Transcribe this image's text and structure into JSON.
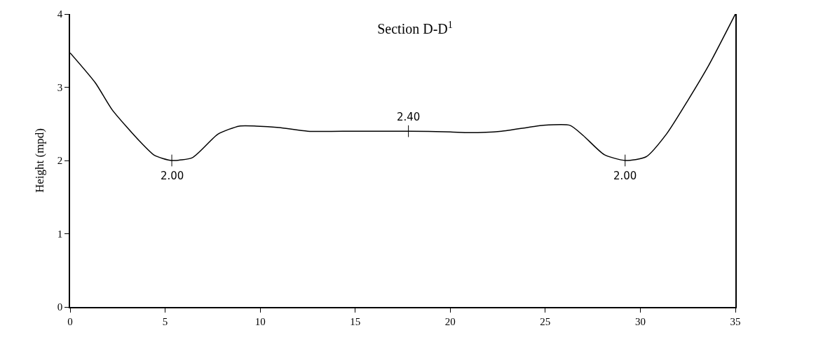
{
  "chart_data": {
    "type": "line",
    "title": "Section D-D$^{1}$",
    "ylabel": "Height (mpd)",
    "x": [
      0,
      1.33,
      2.22,
      3.67,
      4.44,
      5.35,
      6.44,
      7.78,
      8.9,
      9.8,
      11,
      12.5,
      15,
      17.8,
      20,
      21,
      22.7,
      24.9,
      26.3,
      27,
      28.1,
      29.2,
      30.3,
      31.4,
      32.5,
      33.6,
      35
    ],
    "series": [
      {
        "color": "#000000",
        "values": [
          3.47,
          3.06,
          2.69,
          2.26,
          2.07,
          2.0,
          2.04,
          2.36,
          2.47,
          2.47,
          2.45,
          2.4,
          2.4,
          2.4,
          2.39,
          2.38,
          2.4,
          2.48,
          2.48,
          2.34,
          2.08,
          2.0,
          2.05,
          2.37,
          2.82,
          3.3,
          4.0
        ]
      }
    ],
    "annotations": [
      {
        "text": "2.00",
        "x": 5.35,
        "y": 2.0
      },
      {
        "text": "2.40",
        "x": 17.8,
        "y": 2.4
      },
      {
        "text": "2.00",
        "x": 29.2,
        "y": 2.0
      }
    ],
    "xlim": [
      0,
      35
    ],
    "xticks": [
      0,
      5,
      10,
      15,
      20,
      25,
      30,
      35
    ],
    "ylim": [
      0,
      4
    ],
    "yticks": [
      0,
      1,
      2,
      3,
      4
    ],
    "marker": "none",
    "line_style": "solid"
  }
}
